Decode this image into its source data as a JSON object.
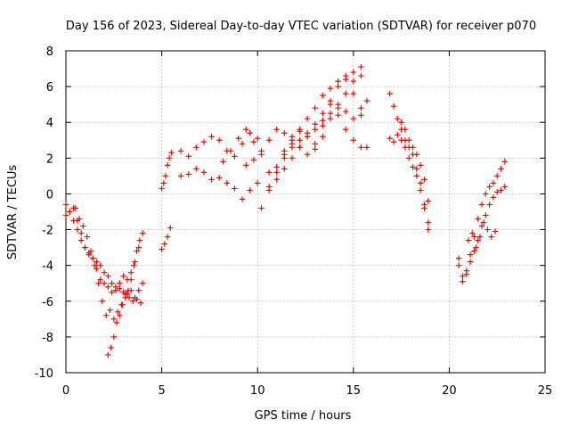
{
  "chart_data": {
    "type": "scatter",
    "title": "Day 156 of 2023, Sidereal Day-to-day VTEC variation (SDTVAR) for receiver p070",
    "xlabel": "GPS time / hours",
    "ylabel": "SDTVAR / TECUs",
    "xlim": [
      0,
      25
    ],
    "ylim": [
      -10,
      8
    ],
    "xticks": [
      0,
      5,
      10,
      15,
      20,
      25
    ],
    "yticks": [
      -10,
      -8,
      -6,
      -4,
      -2,
      0,
      2,
      4,
      6,
      8
    ],
    "grid": true,
    "marker": "plus",
    "color": "#ff0000",
    "series": [
      {
        "x": [
          0.0,
          0.2,
          0.4,
          0.6,
          0.8,
          1.0,
          1.2,
          1.4,
          1.6,
          1.8,
          2.0,
          2.2,
          2.4,
          2.6,
          2.8,
          3.0,
          3.2,
          3.4,
          3.6,
          3.8,
          4.0
        ],
        "y": [
          -0.6,
          -1.0,
          -1.5,
          -2.0,
          -2.6,
          -3.0,
          -3.3,
          -3.6,
          -4.2,
          -4.8,
          -5.0,
          -5.2,
          -5.5,
          -5.2,
          -5.3,
          -5.5,
          -5.6,
          -5.4,
          -5.8,
          -5.4,
          -5.0
        ]
      },
      {
        "x": [
          0.0,
          0.2,
          0.4,
          0.6,
          0.8,
          1.0,
          1.2,
          1.4,
          1.6,
          1.8,
          2.0,
          2.2,
          2.4,
          2.6,
          2.8,
          3.0,
          3.2,
          3.4,
          3.6,
          3.8,
          4.0
        ],
        "y": [
          -1.2,
          -1.0,
          -0.8,
          -1.5,
          -2.2,
          -3.0,
          -3.4,
          -3.6,
          -3.8,
          -4.0,
          -4.4,
          -4.6,
          -5.0,
          -5.4,
          -5.0,
          -4.6,
          -4.8,
          -4.4,
          -3.8,
          -3.0,
          -2.2
        ]
      },
      {
        "x": [
          0.5,
          0.7,
          0.9,
          1.1,
          1.3,
          1.5,
          1.7,
          1.9,
          2.1,
          2.3,
          2.5,
          2.7,
          2.9,
          3.1,
          3.3,
          3.5,
          3.7,
          3.9
        ],
        "y": [
          -0.8,
          -1.4,
          -1.8,
          -2.4,
          -3.2,
          -4.0,
          -5.0,
          -6.0,
          -6.8,
          -6.5,
          -7.0,
          -6.6,
          -6.2,
          -5.6,
          -5.8,
          -6.0,
          -5.9,
          -6.1
        ]
      },
      {
        "x": [
          2.2,
          2.35,
          2.5,
          2.65,
          2.8,
          2.95,
          3.1,
          3.25,
          3.4,
          3.55,
          3.7,
          3.85,
          4.0
        ],
        "y": [
          -9.0,
          -8.6,
          -8.0,
          -7.2,
          -6.8,
          -6.2,
          -5.8,
          -5.4,
          -4.8,
          -4.0,
          -3.2,
          -2.6,
          -2.2
        ]
      },
      {
        "x": [
          5.0,
          5.1,
          5.2,
          5.3,
          5.4,
          5.5
        ],
        "y": [
          0.3,
          0.6,
          1.0,
          1.6,
          2.0,
          2.3
        ]
      },
      {
        "x": [
          5.0,
          5.15,
          5.3,
          5.45
        ],
        "y": [
          -3.1,
          -2.8,
          -2.4,
          -1.9
        ]
      },
      {
        "x": [
          6.0,
          6.4,
          6.8,
          7.2,
          7.6,
          8.0,
          8.4,
          8.8,
          9.2,
          9.6,
          10.0
        ],
        "y": [
          1.0,
          1.1,
          1.4,
          1.2,
          0.8,
          0.9,
          0.6,
          0.3,
          -0.3,
          0.2,
          0.6
        ]
      },
      {
        "x": [
          6.0,
          6.4,
          6.8,
          7.2,
          7.6,
          8.0,
          8.4,
          8.8,
          9.2,
          9.6,
          10.0
        ],
        "y": [
          2.4,
          2.1,
          2.6,
          2.9,
          3.2,
          3.0,
          2.4,
          2.1,
          2.8,
          3.4,
          3.1
        ]
      },
      {
        "x": [
          8.2,
          8.6,
          9.0,
          9.4,
          9.8,
          10.2,
          10.6,
          11.0,
          11.4,
          11.8,
          12.2,
          12.6,
          13.0,
          13.4,
          13.8,
          14.2,
          14.6,
          15.0,
          15.4
        ],
        "y": [
          1.8,
          2.4,
          3.1,
          3.6,
          2.9,
          2.2,
          1.2,
          1.5,
          2.4,
          3.2,
          3.6,
          3.2,
          2.8,
          3.8,
          5.2,
          6.0,
          6.4,
          6.8,
          7.1
        ]
      },
      {
        "x": [
          9.4,
          9.8,
          10.2,
          10.6,
          11.0,
          11.4,
          11.8,
          12.2,
          12.6,
          13.0,
          13.4,
          13.8,
          14.2,
          14.6,
          15.0,
          15.4
        ],
        "y": [
          1.6,
          1.9,
          2.4,
          3.0,
          3.6,
          3.4,
          3.0,
          2.6,
          2.2,
          2.5,
          3.2,
          4.2,
          5.0,
          5.6,
          6.3,
          6.6
        ]
      },
      {
        "x": [
          10.2,
          10.6,
          11.0,
          11.4,
          11.8,
          12.2,
          12.6,
          13.0,
          13.4,
          13.8,
          14.2,
          14.6,
          15.0,
          15.4,
          15.7
        ],
        "y": [
          -0.8,
          0.2,
          0.8,
          1.4,
          2.0,
          2.6,
          3.2,
          3.6,
          4.1,
          4.5,
          4.8,
          4.6,
          4.2,
          4.8,
          5.2
        ]
      },
      {
        "x": [
          10.6,
          11.0,
          11.4,
          11.8,
          12.2,
          12.6,
          13.0,
          13.4,
          13.8,
          14.2,
          14.6,
          15.0,
          15.4,
          15.7
        ],
        "y": [
          0.4,
          1.2,
          2.0,
          2.6,
          3.0,
          3.4,
          3.9,
          4.5,
          5.0,
          4.4,
          3.6,
          3.0,
          2.6,
          2.6
        ]
      },
      {
        "x": [
          11.4,
          11.8,
          12.2,
          12.6,
          13.0,
          13.4,
          13.8,
          14.2,
          14.6,
          15.0,
          15.4
        ],
        "y": [
          2.2,
          2.8,
          3.5,
          4.2,
          4.8,
          5.5,
          5.9,
          6.3,
          6.6,
          5.6,
          4.4
        ]
      },
      {
        "x": [
          16.9,
          17.1,
          17.3,
          17.5,
          17.7,
          17.9,
          18.1,
          18.3,
          18.5,
          18.7,
          18.9
        ],
        "y": [
          5.6,
          4.9,
          4.2,
          3.6,
          3.0,
          2.6,
          2.2,
          1.4,
          0.6,
          -0.8,
          -2.0
        ]
      },
      {
        "x": [
          16.9,
          17.1,
          17.3,
          17.5,
          17.7,
          17.9,
          18.1,
          18.3,
          18.5,
          18.7,
          18.9
        ],
        "y": [
          3.1,
          2.9,
          3.3,
          3.0,
          2.6,
          2.0,
          1.5,
          1.0,
          0.2,
          -0.6,
          -1.6
        ]
      },
      {
        "x": [
          17.5,
          17.7,
          17.9,
          18.1,
          18.3,
          18.5,
          18.7,
          18.9
        ],
        "y": [
          4.0,
          3.6,
          3.0,
          2.6,
          2.2,
          1.6,
          0.8,
          -0.4
        ]
      },
      {
        "x": [
          20.5,
          20.7,
          20.9,
          21.1,
          21.3,
          21.5,
          21.7,
          21.9,
          22.1,
          22.3,
          22.5,
          22.7,
          22.9
        ],
        "y": [
          -4.0,
          -4.6,
          -4.3,
          -3.4,
          -2.4,
          -1.4,
          -0.6,
          0.0,
          0.4,
          0.6,
          1.0,
          1.4,
          1.8
        ]
      },
      {
        "x": [
          20.5,
          20.7,
          20.9,
          21.1,
          21.3,
          21.5,
          21.7,
          21.9,
          22.1,
          22.3,
          22.5,
          22.7,
          22.9
        ],
        "y": [
          -3.6,
          -4.9,
          -4.5,
          -3.8,
          -3.2,
          -2.6,
          -1.8,
          -1.2,
          -0.6,
          -0.2,
          0.1,
          0.2,
          0.4
        ]
      },
      {
        "x": [
          21.0,
          21.2,
          21.4,
          21.6,
          21.8,
          22.0,
          22.2,
          22.4
        ],
        "y": [
          -2.6,
          -2.2,
          -3.0,
          -2.4,
          -1.6,
          -2.0,
          -2.4,
          -2.1
        ]
      }
    ]
  }
}
